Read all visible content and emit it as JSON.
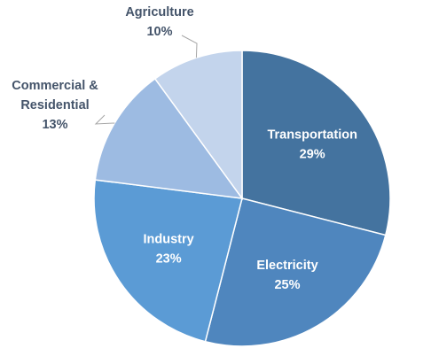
{
  "chart_data": {
    "type": "pie",
    "title": "",
    "start_angle_deg": 0,
    "direction": "clockwise",
    "slices": [
      {
        "name": "Transportation",
        "value": 29,
        "value_label": "29%",
        "color": "#44739f",
        "label_position": "inside"
      },
      {
        "name": "Electricity",
        "value": 25,
        "value_label": "25%",
        "color": "#4f86be",
        "label_position": "inside"
      },
      {
        "name": "Industry",
        "value": 23,
        "value_label": "23%",
        "color": "#5b9bd5",
        "label_position": "inside"
      },
      {
        "name": "Commercial &\nResidential",
        "value": 13,
        "value_label": "13%",
        "color": "#9dbbe2",
        "label_position": "outside"
      },
      {
        "name": "Agriculture",
        "value": 10,
        "value_label": "10%",
        "color": "#c3d4ec",
        "label_position": "outside"
      }
    ],
    "legend": "none"
  },
  "colors": {
    "inside_label": "#ffffff",
    "outside_label": "#44546a",
    "slice_border": "#ffffff",
    "leader_line": "#a6a6a6"
  }
}
